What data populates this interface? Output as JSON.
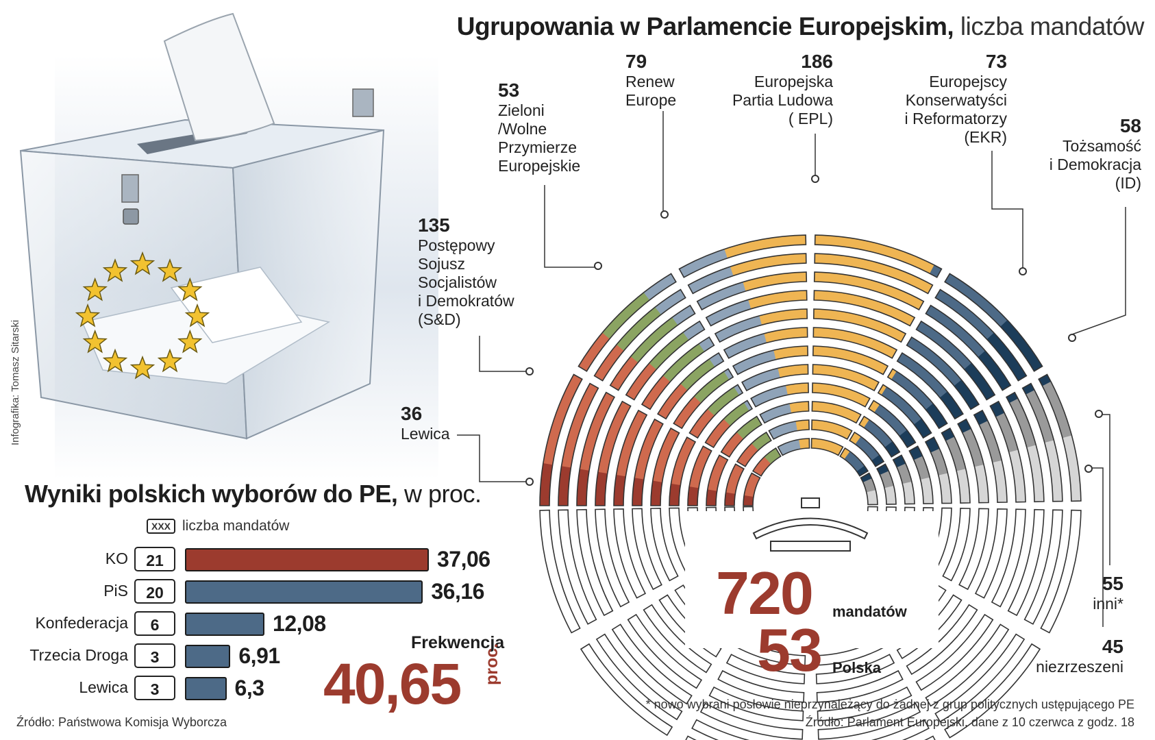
{
  "credit": "Infografika: Tomasz Sitarski",
  "title": {
    "bold": "Ugrupowania w Parlamencie Europejskim,",
    "light": "liczba mandatów"
  },
  "chart_data": [
    {
      "type": "parliament-hemicycle",
      "title": "Ugrupowania w Parlamencie Europejskim, liczba mandatów",
      "total": "720",
      "total_label": "mandatów",
      "poland": "53",
      "poland_label": "Polska",
      "groups": [
        {
          "name": "Lewica",
          "seats": 36,
          "color": "#9c3b2e"
        },
        {
          "name": "Postępowy Sojusz Socjalistów i Demokratów (S&D)",
          "seats": 135,
          "color": "#cf6a4e"
        },
        {
          "name": "Zieloni /Wolne Przymierze Europejskie",
          "seats": 53,
          "color": "#8ba462"
        },
        {
          "name": "Renew Europe",
          "seats": 79,
          "color": "#8fa3b8"
        },
        {
          "name": "Europejska Partia Ludowa ( EPL)",
          "seats": 186,
          "color": "#efb553"
        },
        {
          "name": "Europejscy Konserwatyści i Reformatorzy (EKR)",
          "seats": 73,
          "color": "#4d6a87"
        },
        {
          "name": "Tożsamość i Demokracja (ID)",
          "seats": 58,
          "color": "#1c3d5a"
        },
        {
          "name": "niezrzeszeni",
          "seats": 45,
          "color": "#9a9a9a"
        },
        {
          "name": "inni*",
          "seats": 55,
          "color": "#d6d6d6"
        }
      ]
    },
    {
      "type": "bar",
      "title": "Wyniki polskich wyborów do PE, w proc.",
      "categories": [
        "KO",
        "PiS",
        "Konfederacja",
        "Trzecia Droga",
        "Lewica"
      ],
      "values": [
        37.06,
        36.16,
        12.08,
        6.91,
        6.3
      ],
      "seats": [
        21,
        20,
        6,
        3,
        3
      ]
    }
  ],
  "labels": {
    "lewica": {
      "num": "36",
      "name": "Lewica"
    },
    "sd": {
      "num": "135",
      "l1": "Postępowy",
      "l2": "Sojusz",
      "l3": "Socjalistów",
      "l4": "i Demokratów",
      "l5": "(S&D)"
    },
    "zieloni": {
      "num": "53",
      "l1": "Zieloni",
      "l2": "/Wolne",
      "l3": "Przymierze",
      "l4": "Europejskie"
    },
    "renew": {
      "num": "79",
      "l1": "Renew",
      "l2": "Europe"
    },
    "epl": {
      "num": "186",
      "l1": "Europejska",
      "l2": "Partia Ludowa",
      "l3": "( EPL)"
    },
    "ekr": {
      "num": "73",
      "l1": "Europejscy",
      "l2": "Konserwatyści",
      "l3": "i Reformatorzy",
      "l4": "(EKR)"
    },
    "id": {
      "num": "58",
      "l1": "Tożsamość",
      "l2": "i Demokracja",
      "l3": "(ID)"
    },
    "inni": {
      "num": "55",
      "l1": "inni*"
    },
    "niez": {
      "num": "45",
      "l1": "niezrzeszeni"
    }
  },
  "poll": {
    "title_bold": "Wyniki polskich wyborów do PE,",
    "title_light": "w proc.",
    "legend_box": "XXX",
    "legend_text": "liczba mandatów",
    "rows": [
      {
        "name": "KO",
        "seats": "21",
        "value": "37,06",
        "pct": 37.06,
        "color": "#9c3b2e"
      },
      {
        "name": "PiS",
        "seats": "20",
        "value": "36,16",
        "pct": 36.16,
        "color": "#4d6a87"
      },
      {
        "name": "Konfederacja",
        "seats": "6",
        "value": "12,08",
        "pct": 12.08,
        "color": "#4d6a87"
      },
      {
        "name": "Trzecia Droga",
        "seats": "3",
        "value": "6,91",
        "pct": 6.91,
        "color": "#4d6a87"
      },
      {
        "name": "Lewica",
        "seats": "3",
        "value": "6,3",
        "pct": 6.3,
        "color": "#4d6a87"
      }
    ],
    "turnout_label": "Frekwencja",
    "turnout_value": "40,65",
    "turnout_unit": "proc."
  },
  "footnote": "* nowo wybrani posłowie nieprzynależący do żadnej z grup politycznych ustępującego PE",
  "source_right": "Źródło: Parlament Europejski, dane z 10 czerwca z godz. 18",
  "source_left": "Źródło: Państwowa Komisja Wyborcza"
}
